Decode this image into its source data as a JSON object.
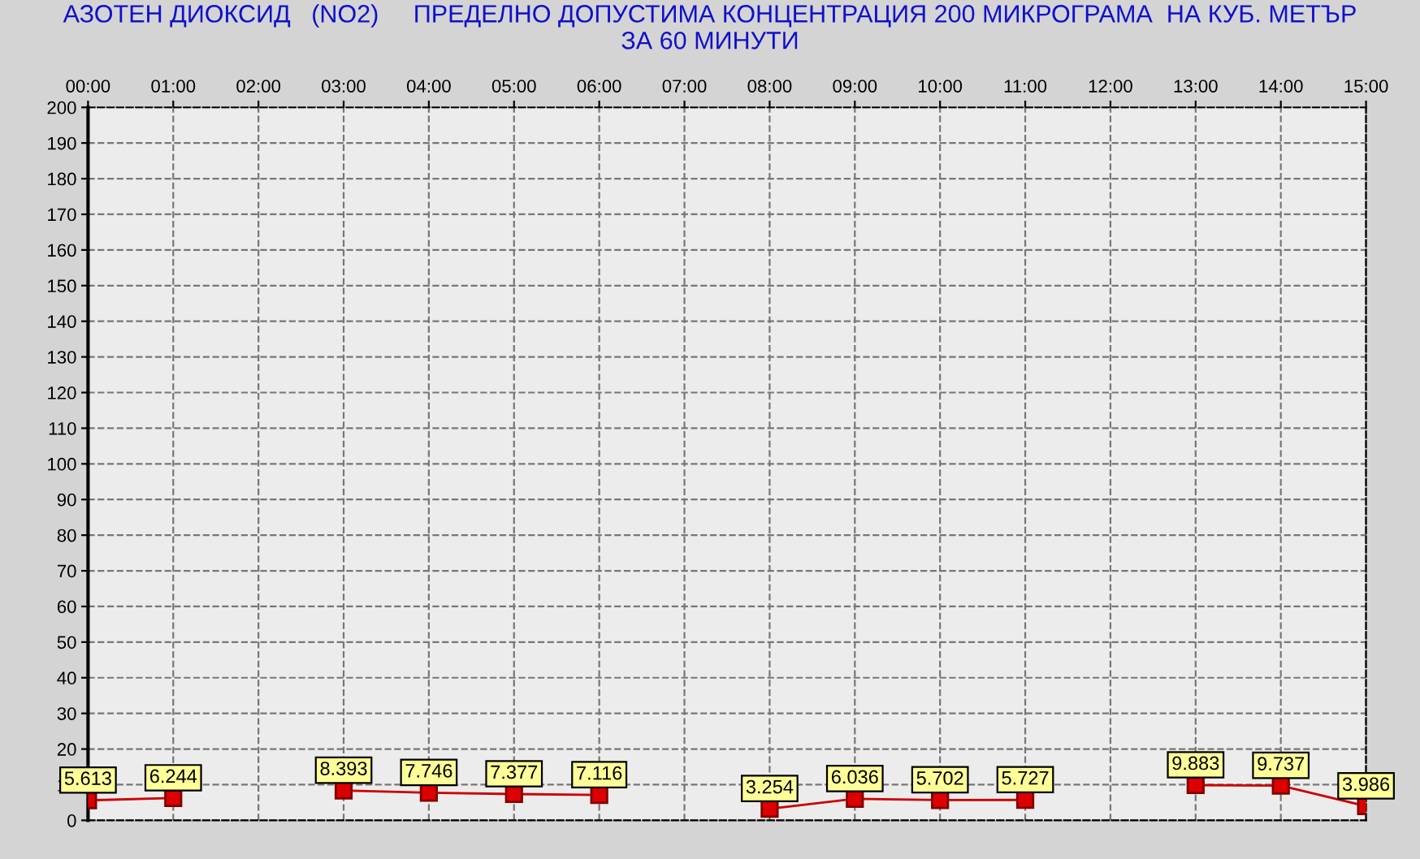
{
  "chart_data": {
    "type": "line",
    "title": "АЗОТЕН ДИОКСИД   (NO2)     ПРЕДЕЛНО ДОПУСТИМА КОНЦЕНТРАЦИЯ 200 МИКРОГРАМА  НА КУБ. МЕТЪР\nЗА 60 МИНУТИ",
    "x": [
      0,
      1,
      2,
      3,
      4,
      5,
      6,
      7,
      8,
      9,
      10,
      11,
      12,
      13,
      14,
      15
    ],
    "series": [
      {
        "color": "#cc0000",
        "values": [
          5.613,
          6.244,
          null,
          8.393,
          7.746,
          7.377,
          7.116,
          null,
          3.254,
          6.036,
          5.702,
          5.727,
          null,
          9.883,
          9.737,
          3.986
        ]
      }
    ],
    "xlim": [
      0,
      15
    ],
    "xticks": [
      {
        "value": 0,
        "label": "00:00"
      },
      {
        "value": 1,
        "label": "01:00"
      },
      {
        "value": 2,
        "label": "02:00"
      },
      {
        "value": 3,
        "label": "03:00"
      },
      {
        "value": 4,
        "label": "04:00"
      },
      {
        "value": 5,
        "label": "05:00"
      },
      {
        "value": 6,
        "label": "06:00"
      },
      {
        "value": 7,
        "label": "07:00"
      },
      {
        "value": 8,
        "label": "08:00"
      },
      {
        "value": 9,
        "label": "09:00"
      },
      {
        "value": 10,
        "label": "10:00"
      },
      {
        "value": 11,
        "label": "11:00"
      },
      {
        "value": 12,
        "label": "12:00"
      },
      {
        "value": 13,
        "label": "13:00"
      },
      {
        "value": 14,
        "label": "14:00"
      },
      {
        "value": 15,
        "label": "15:00"
      }
    ],
    "ylim": [
      0,
      200
    ],
    "yticks": [
      0,
      10,
      20,
      30,
      40,
      50,
      60,
      70,
      80,
      90,
      100,
      110,
      120,
      130,
      140,
      150,
      160,
      170,
      180,
      190,
      200
    ],
    "grid": true,
    "marker": "square",
    "line_style": "solid",
    "data_labels": true
  }
}
